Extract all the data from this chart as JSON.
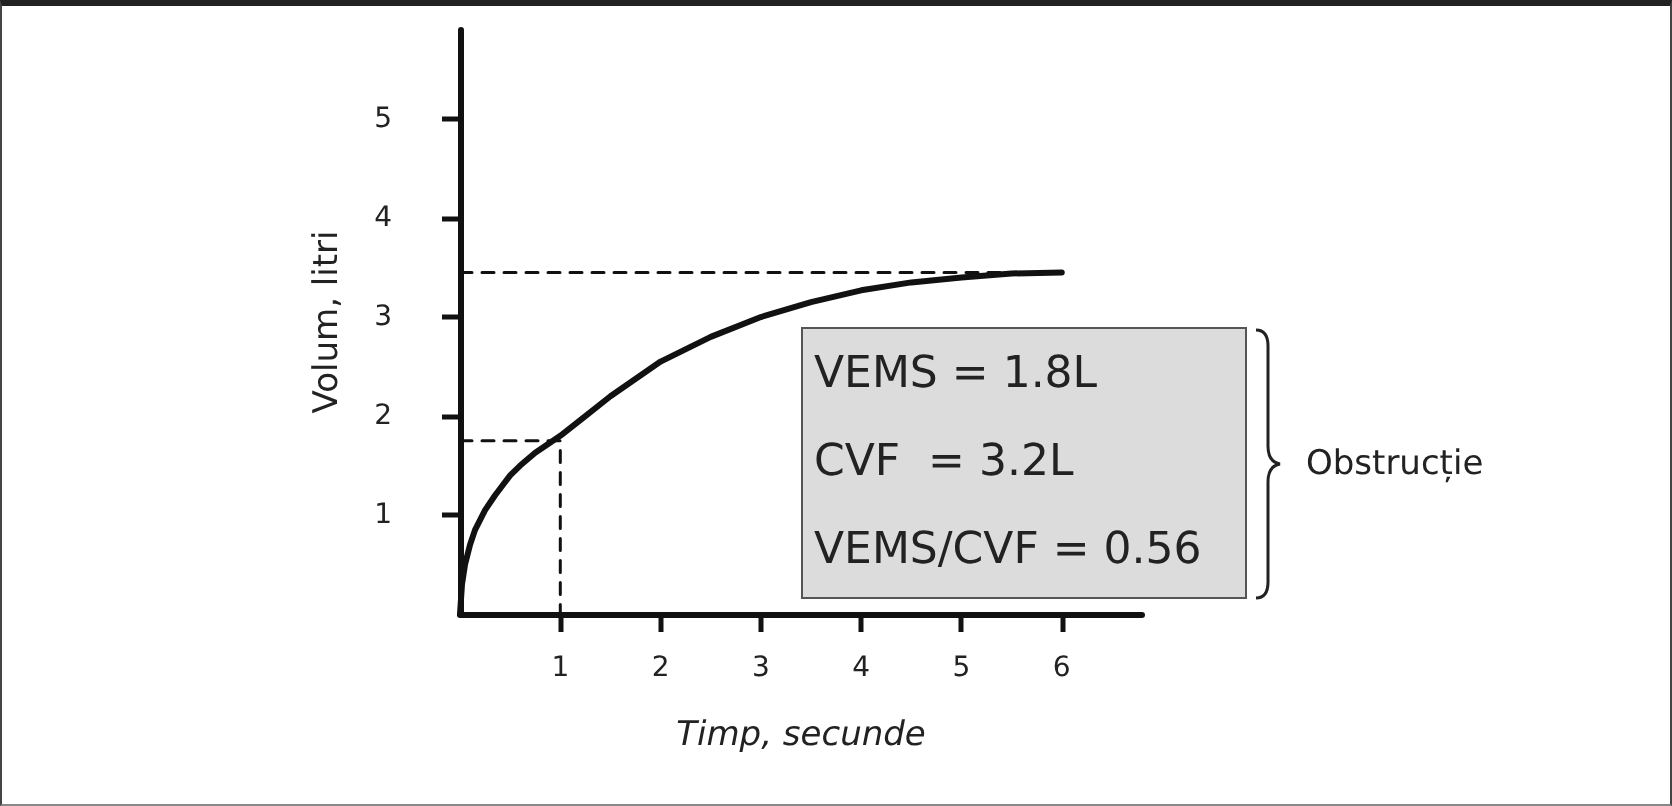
{
  "chart_data": {
    "type": "line",
    "xlabel": "Timp, secunde",
    "ylabel": "Volum, litri",
    "series": [
      {
        "color": "#111111",
        "x": [
          0,
          0.02,
          0.05,
          0.1,
          0.15,
          0.25,
          0.35,
          0.5,
          0.6,
          0.75,
          1,
          1.25,
          1.5,
          2,
          2.5,
          3,
          3.5,
          4,
          4.5,
          5,
          5.5,
          6
        ],
        "values": [
          0,
          0.3,
          0.5,
          0.7,
          0.85,
          1.05,
          1.2,
          1.4,
          1.5,
          1.63,
          1.8,
          2.0,
          2.2,
          2.55,
          2.8,
          3.0,
          3.15,
          3.27,
          3.35,
          3.4,
          3.44,
          3.45
        ]
      },
      {
        "color": "#111111",
        "line_style": "dashed",
        "x": [
          0,
          1,
          1
        ],
        "values": [
          1.75,
          1.75,
          0
        ]
      },
      {
        "color": "#111111",
        "line_style": "dashed",
        "x": [
          0,
          6
        ],
        "values": [
          3.45,
          3.45
        ]
      }
    ],
    "xlim": [
      0,
      6.8
    ],
    "xticks": [
      1,
      2,
      3,
      4,
      5,
      6
    ],
    "ylim": [
      0,
      5.9
    ],
    "yticks": [
      1,
      2,
      3,
      4,
      5
    ],
    "grid": false,
    "marker": "none",
    "line_style": "solid",
    "annotations": [
      "VEMS = 1.8L",
      "CVF  = 3.2L",
      "VEMS/CVF = 0.56",
      "Obstrucție"
    ]
  }
}
